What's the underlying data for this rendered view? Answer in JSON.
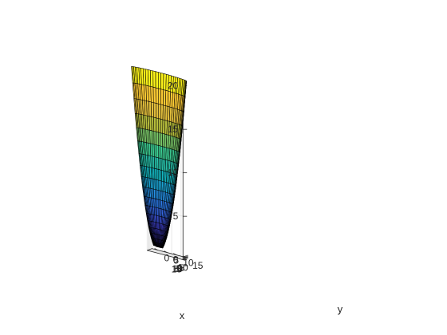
{
  "chart_data": {
    "type": "surface",
    "title": "",
    "xlabel": "x",
    "ylabel": "y",
    "zlabel": "",
    "xlim": [
      -12,
      15
    ],
    "ylim": [
      -3,
      16
    ],
    "zlim": [
      0,
      20
    ],
    "x_ticks": [
      "15",
      "10",
      "5",
      "0",
      "-5",
      "-10"
    ],
    "y_ticks": [
      "0",
      "5",
      "10",
      "15"
    ],
    "z_ticks": [
      "0",
      "5",
      "10",
      "15",
      "20"
    ],
    "grid": true,
    "box": false,
    "colormap": "parula",
    "colormap_stops": [
      "#3e26a8",
      "#4a4cf0",
      "#2c87f5",
      "#13b8c6",
      "#3cc98f",
      "#b4bd3c",
      "#fdbd3c",
      "#f9fb15"
    ],
    "surface": {
      "u_range": [
        2.5,
        15
      ],
      "u_steps": 18,
      "theta_range_deg": [
        -25,
        255
      ],
      "theta_steps": 52,
      "curve": "z = u^2 / 11, with x = u·cos(theta) + 1.5, y = u·sin(theta) + 1.5"
    }
  }
}
